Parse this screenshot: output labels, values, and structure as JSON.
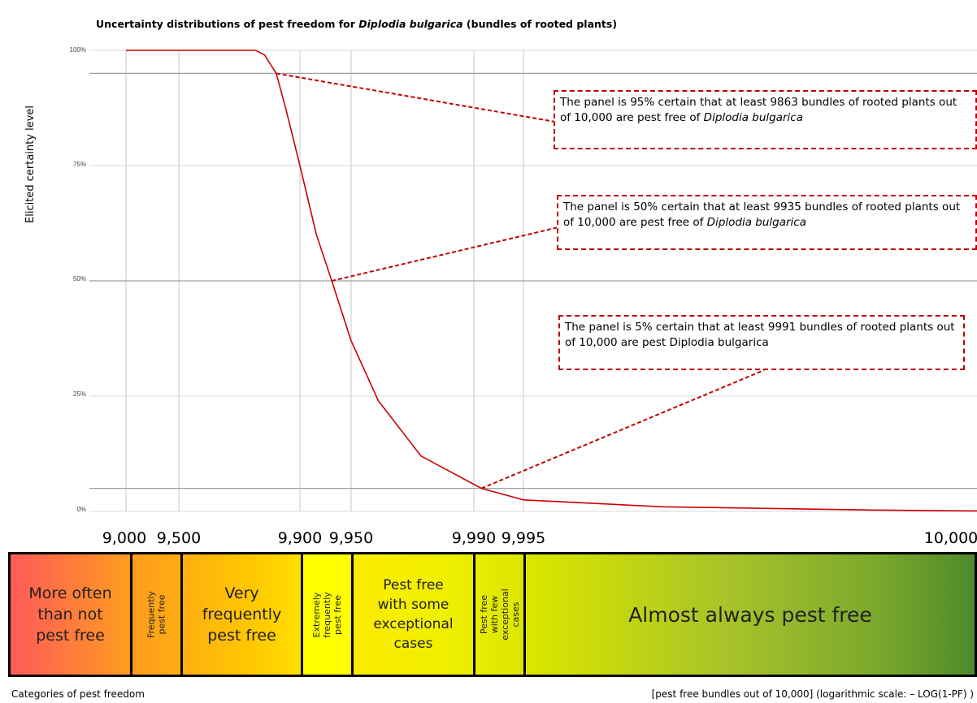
{
  "title": {
    "prefix": "Uncertainty distributions of pest freedom for ",
    "species": "Diplodia bulgarica",
    "suffix": " (bundles of rooted plants)"
  },
  "chart_data": {
    "type": "line",
    "title": "Uncertainty distributions of pest freedom for Diplodia bulgarica (bundles of rooted plants)",
    "ylabel": "Elicited certainty level",
    "xlabel": "[pest free bundles out of 10,000] (logarithmic scale: – LOG(1-PF) )",
    "x_scale": "log(1-PF)",
    "ylim": [
      0,
      1
    ],
    "y_ticks": [
      "0%",
      "25%",
      "50%",
      "75%",
      "100%"
    ],
    "x_ticks": [
      "9,000",
      "9,500",
      "9,900",
      "9,950",
      "9,990",
      "9,995",
      "10,000"
    ],
    "grid": true,
    "series": [
      {
        "color": "#cc0000",
        "x": [
          9000,
          9500,
          9820,
          9840,
          9863,
          9880,
          9900,
          9920,
          9935,
          9950,
          9965,
          9980,
          9991,
          9995,
          9998,
          9999.5,
          9999.9,
          10000
        ],
        "y": [
          1.0,
          1.0,
          1.0,
          0.99,
          0.95,
          0.87,
          0.75,
          0.6,
          0.5,
          0.37,
          0.24,
          0.12,
          0.05,
          0.025,
          0.01,
          0.003,
          0.001,
          0.0
        ]
      }
    ],
    "reference_lines": [
      0.95,
      0.5,
      0.05
    ],
    "annotations": [
      {
        "text_main": "The panel is 95% certain that at least 9863 bundles of rooted plants out of 10,000 are pest free of ",
        "text_italic": "Diplodia bulgarica",
        "x": 9863,
        "y": 0.95
      },
      {
        "text_main": "The panel is 50% certain that at least 9935 bundles of rooted plants out of 10,000 are pest free of ",
        "text_italic": "Diplodia bulgarica",
        "x": 9935,
        "y": 0.5
      },
      {
        "text_main": "The panel is 5% certain that at least 9991 bundles of rooted plants out of 10,000 are pest Diplodia bulgarica",
        "text_italic": "",
        "x": 9991,
        "y": 0.05
      }
    ]
  },
  "categories": {
    "axis_label": "Categories of pest freedom",
    "items": [
      {
        "label": "More often than not pest free"
      },
      {
        "label": "Frequently pest free"
      },
      {
        "label": "Very frequently pest free"
      },
      {
        "label": "Extremely frequently pest free"
      },
      {
        "label": "Pest free with some exceptional cases"
      },
      {
        "label": "Pest free with few exceptional cases"
      },
      {
        "label": "Almost always pest free"
      }
    ]
  },
  "colors": {
    "curve": "#cc0000",
    "annotation": "#c00000",
    "grid": "#cccccc",
    "refline": "#a0a0a0"
  }
}
